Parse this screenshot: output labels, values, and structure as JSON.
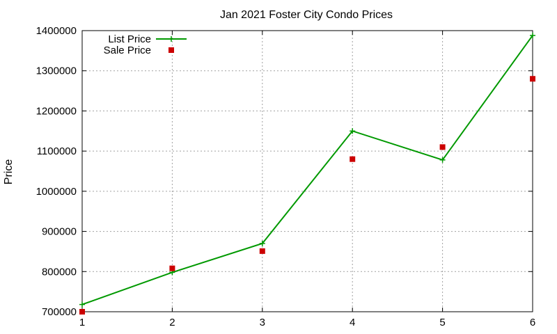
{
  "chart_data": {
    "type": "line",
    "title": "Jan 2021 Foster City Condo Prices",
    "xlabel": "",
    "ylabel": "Price",
    "xlim": [
      1,
      6
    ],
    "ylim": [
      700000,
      1400000
    ],
    "x_ticks": [
      "1",
      "2",
      "3",
      "4",
      "5",
      "6"
    ],
    "y_ticks": [
      "700000",
      "800000",
      "900000",
      "1000000",
      "1100000",
      "1200000",
      "1300000",
      "1400000"
    ],
    "grid": true,
    "legend_position": "top-left",
    "series": [
      {
        "name": "List Price",
        "style": "lines+points",
        "marker": "plus",
        "color": "#009900",
        "x": [
          1,
          2,
          3,
          4,
          5,
          6
        ],
        "y": [
          718000,
          798000,
          870000,
          1150000,
          1078000,
          1388000
        ]
      },
      {
        "name": "Sale Price",
        "style": "points",
        "marker": "square",
        "color": "#cc0000",
        "x": [
          1,
          2,
          3,
          4,
          5,
          6
        ],
        "y": [
          700000,
          808000,
          851000,
          1080000,
          1110000,
          1280000
        ]
      }
    ]
  }
}
